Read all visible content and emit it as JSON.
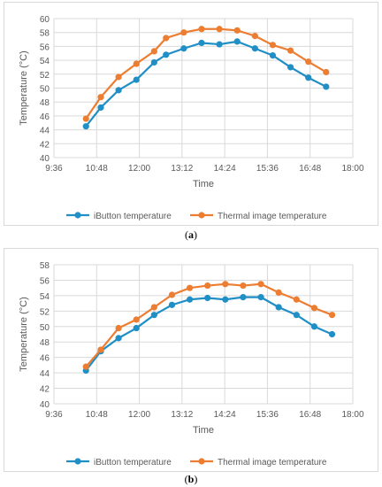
{
  "colors": {
    "ibutton": "#1f8fc6",
    "thermal": "#ed7d31",
    "grid": "#d9d9d9",
    "axis_text": "#595959"
  },
  "captions": [
    {
      "open": "(",
      "letter": "a",
      "close": ")"
    },
    {
      "open": "(",
      "letter": "b",
      "close": ")"
    }
  ],
  "chart_data": [
    {
      "type": "line",
      "xlabel": "Time",
      "ylabel": "Temperature (°C)",
      "ylim": [
        40,
        60
      ],
      "yticks": [
        40,
        42,
        44,
        46,
        48,
        50,
        52,
        54,
        56,
        58,
        60
      ],
      "xlim": [
        "9:36",
        "18:00"
      ],
      "xticks": [
        "9:36",
        "10:48",
        "12:00",
        "13:12",
        "14:24",
        "15:36",
        "16:48",
        "18:00"
      ],
      "grid": true,
      "legend": "bottom",
      "x": [
        "10:30",
        "10:55",
        "11:25",
        "11:55",
        "12:25",
        "12:45",
        "13:15",
        "13:45",
        "14:15",
        "14:45",
        "15:15",
        "15:45",
        "16:15",
        "16:45",
        "17:15"
      ],
      "series": [
        {
          "name": "iButton temperature",
          "color_key": "ibutton",
          "values": [
            44.5,
            47.2,
            49.7,
            51.2,
            53.7,
            54.8,
            55.7,
            56.5,
            56.3,
            56.7,
            55.7,
            54.7,
            53.0,
            51.5,
            50.2
          ]
        },
        {
          "name": "Thermal image temperature",
          "color_key": "thermal",
          "values": [
            45.6,
            48.7,
            51.6,
            53.5,
            55.3,
            57.2,
            58.0,
            58.5,
            58.5,
            58.3,
            57.5,
            56.2,
            55.4,
            53.8,
            52.3
          ]
        }
      ]
    },
    {
      "type": "line",
      "xlabel": "Time",
      "ylabel": "Temperature (°C)",
      "ylim": [
        40,
        58
      ],
      "yticks": [
        40,
        42,
        44,
        46,
        48,
        50,
        52,
        54,
        56,
        58
      ],
      "xlim": [
        "9:36",
        "18:00"
      ],
      "xticks": [
        "9:36",
        "10:48",
        "12:00",
        "13:12",
        "14:24",
        "15:36",
        "16:48",
        "18:00"
      ],
      "grid": true,
      "legend": "bottom",
      "x": [
        "10:30",
        "10:55",
        "11:25",
        "11:55",
        "12:25",
        "12:55",
        "13:25",
        "13:55",
        "14:25",
        "14:55",
        "15:25",
        "15:55",
        "16:25",
        "16:55",
        "17:25"
      ],
      "series": [
        {
          "name": "iButton temperature",
          "color_key": "ibutton",
          "values": [
            44.3,
            46.8,
            48.5,
            49.8,
            51.5,
            52.8,
            53.5,
            53.7,
            53.5,
            53.8,
            53.8,
            52.5,
            51.5,
            50.0,
            49.0
          ]
        },
        {
          "name": "Thermal image temperature",
          "color_key": "thermal",
          "values": [
            44.8,
            47.0,
            49.8,
            50.9,
            52.5,
            54.1,
            55.0,
            55.3,
            55.5,
            55.3,
            55.5,
            54.4,
            53.5,
            52.4,
            51.5
          ]
        }
      ]
    }
  ]
}
